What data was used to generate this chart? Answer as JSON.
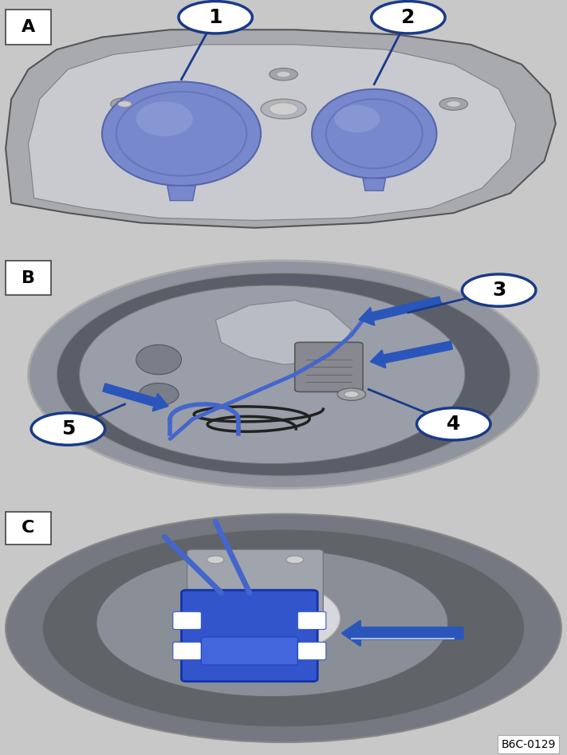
{
  "fig_bg": "#c8c8c8",
  "panel_A_bg": "#c0c0c0",
  "panel_B_bg": "#7a8090",
  "panel_C_bg": "#8090a0",
  "sep_color": "#ffffff",
  "callout_bg": "#ffffff",
  "callout_border": "#1a3a88",
  "callout_text": "#000000",
  "arrow_fill": "#2a55bb",
  "arrow_edge": "#000000",
  "label_A": "A",
  "label_B": "B",
  "label_C": "C",
  "label_fontsize": 16,
  "callout_fontsize": 18,
  "watermark": "B6C-0129",
  "watermark_fontsize": 10,
  "housing_color": "#a8aab0",
  "housing_dark": "#888a90",
  "housing_light": "#c8cad0",
  "cap_blue": "#7888cc",
  "cap_blue_light": "#9aabdd",
  "cap_blue_dark": "#5566aa",
  "inner_gray": "#b0b4bc",
  "dark_bg": "#555860",
  "circle_outer": "#888a90",
  "circle_inner": "#6a6e78",
  "wire_blue": "#4466cc",
  "connector_blue": "#3355cc"
}
